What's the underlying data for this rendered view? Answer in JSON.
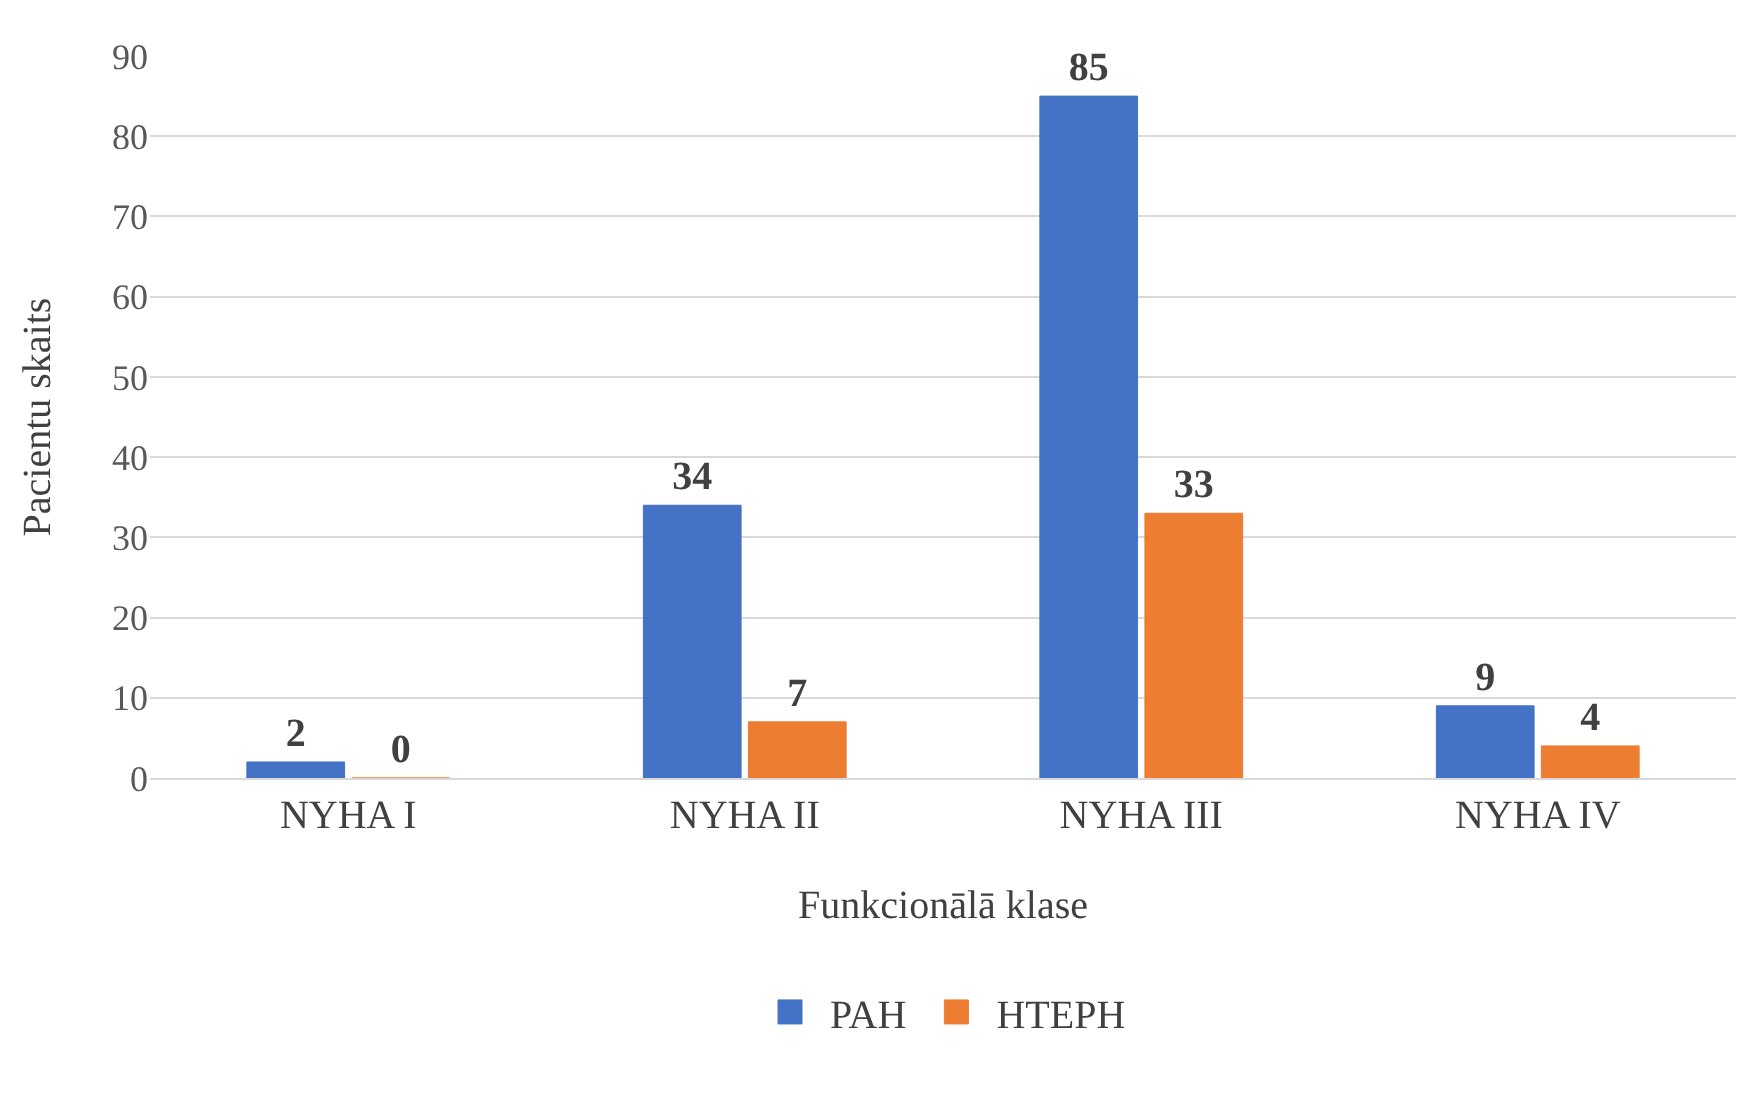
{
  "chart_data": {
    "type": "bar",
    "xlabel": "Funkcionālā klase",
    "ylabel": "Pacientu skaits",
    "categories": [
      "NYHA I",
      "NYHA II",
      "NYHA III",
      "NYHA IV"
    ],
    "series": [
      {
        "name": "PAH",
        "color": "#4472c4",
        "values": [
          2,
          34,
          85,
          9
        ]
      },
      {
        "name": "HTEPH",
        "color": "#ed7d31",
        "values": [
          0,
          7,
          33,
          4
        ]
      }
    ],
    "ylim": [
      0,
      90
    ],
    "yticks": [
      0,
      10,
      20,
      30,
      40,
      50,
      60,
      70,
      80,
      90
    ],
    "grid": "y",
    "legend": "bottom",
    "data_labels": true
  }
}
